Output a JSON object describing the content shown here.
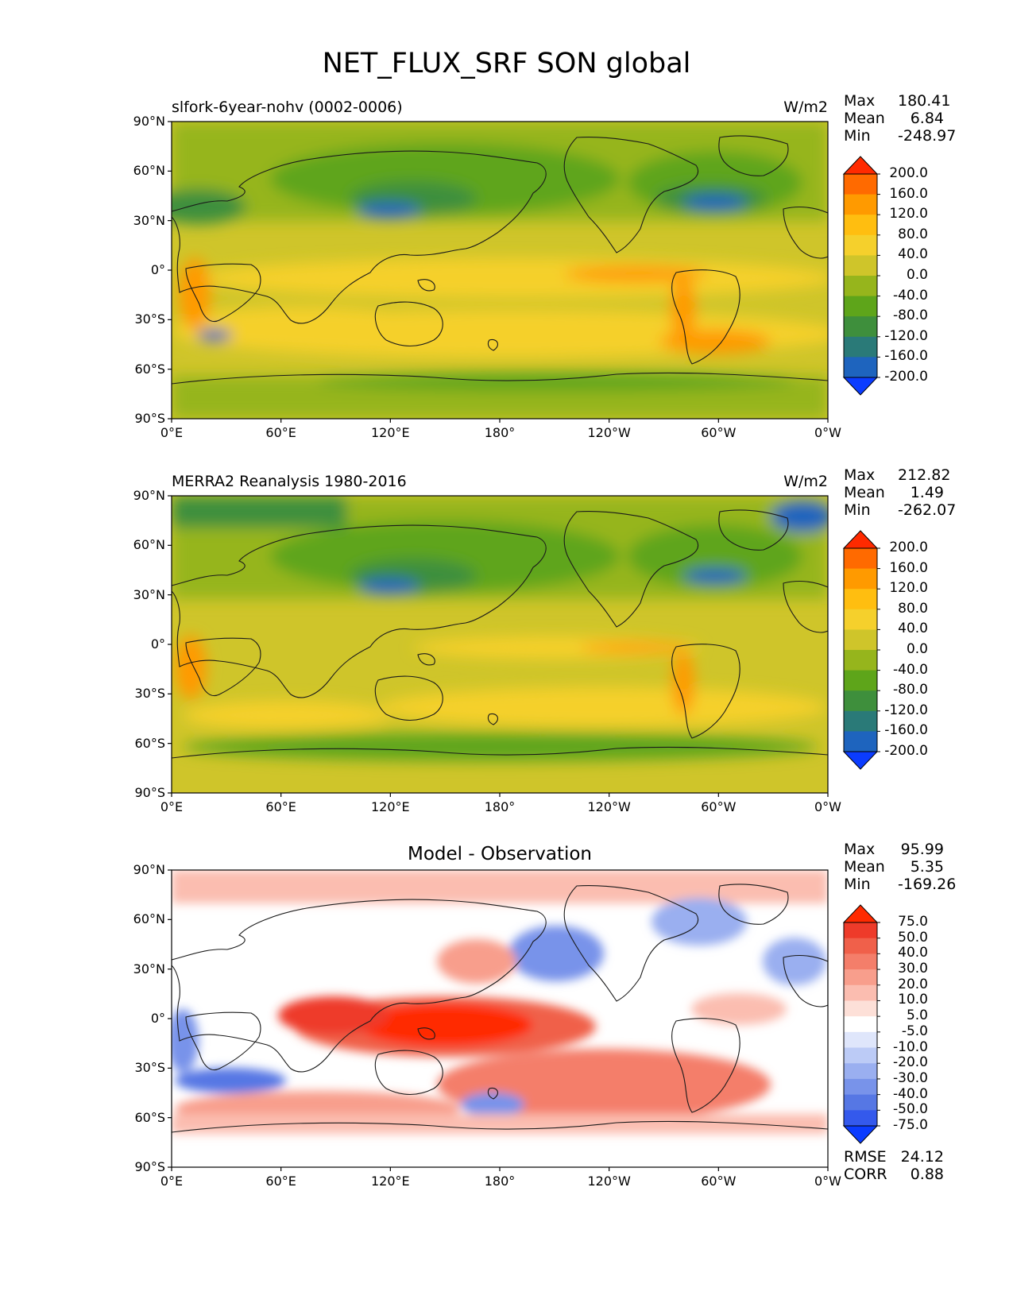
{
  "suptitle": "NET_FLUX_SRF SON global",
  "lat_labels": [
    "90°N",
    "60°N",
    "30°N",
    "0°",
    "30°S",
    "60°S",
    "90°S"
  ],
  "lon_labels": [
    "0°E",
    "60°E",
    "120°E",
    "180°",
    "120°W",
    "60°W",
    "0°W"
  ],
  "panels": [
    {
      "left_title": "slfork-6year-nohv (0002-0006)",
      "center_title": "",
      "units": "W/m2",
      "stats": {
        "max_label": "Max",
        "max": "180.41",
        "mean_label": "Mean",
        "mean": "6.84",
        "min_label": "Min",
        "min": "-248.97"
      },
      "colorbar": {
        "levels": [
          "200.0",
          "160.0",
          "120.0",
          "80.0",
          "40.0",
          "0.0",
          "-40.0",
          "-80.0",
          "-120.0",
          "-160.0",
          "-200.0"
        ],
        "colors": [
          "#ff2a00",
          "#ff6a00",
          "#ff9a00",
          "#ffbe10",
          "#f5d02c",
          "#cfc52a",
          "#96b51c",
          "#5ea51a",
          "#3e8f3c",
          "#2a7a78",
          "#1e64be",
          "#0b3cff"
        ]
      }
    },
    {
      "left_title": "MERRA2 Reanalysis 1980-2016",
      "center_title": "",
      "units": "W/m2",
      "stats": {
        "max_label": "Max",
        "max": "212.82",
        "mean_label": "Mean",
        "mean": "1.49",
        "min_label": "Min",
        "min": "-262.07"
      },
      "colorbar": {
        "levels": [
          "200.0",
          "160.0",
          "120.0",
          "80.0",
          "40.0",
          "0.0",
          "-40.0",
          "-80.0",
          "-120.0",
          "-160.0",
          "-200.0"
        ],
        "colors": [
          "#ff2a00",
          "#ff6a00",
          "#ff9a00",
          "#ffbe10",
          "#f5d02c",
          "#cfc52a",
          "#96b51c",
          "#5ea51a",
          "#3e8f3c",
          "#2a7a78",
          "#1e64be",
          "#0b3cff"
        ]
      }
    },
    {
      "left_title": "",
      "center_title": "Model - Observation",
      "units": "",
      "stats": {
        "max_label": "Max",
        "max": "95.99",
        "mean_label": "Mean",
        "mean": "5.35",
        "min_label": "Min",
        "min": "-169.26"
      },
      "colorbar": {
        "levels": [
          "75.0",
          "50.0",
          "40.0",
          "30.0",
          "20.0",
          "10.0",
          "5.0",
          "-5.0",
          "-10.0",
          "-20.0",
          "-30.0",
          "-40.0",
          "-50.0",
          "-75.0"
        ],
        "colors": [
          "#ff2a00",
          "#ee3b2a",
          "#f0604a",
          "#f47e6a",
          "#f89e8c",
          "#fbbdb0",
          "#fde0d8",
          "#ffffff",
          "#dfe6fb",
          "#bccbf6",
          "#9aaff0",
          "#7893ea",
          "#5677e4",
          "#3459ec",
          "#0b3cff"
        ]
      },
      "rmse_label": "RMSE",
      "rmse": "24.12",
      "corr_label": "CORR",
      "corr": "0.88"
    }
  ]
}
